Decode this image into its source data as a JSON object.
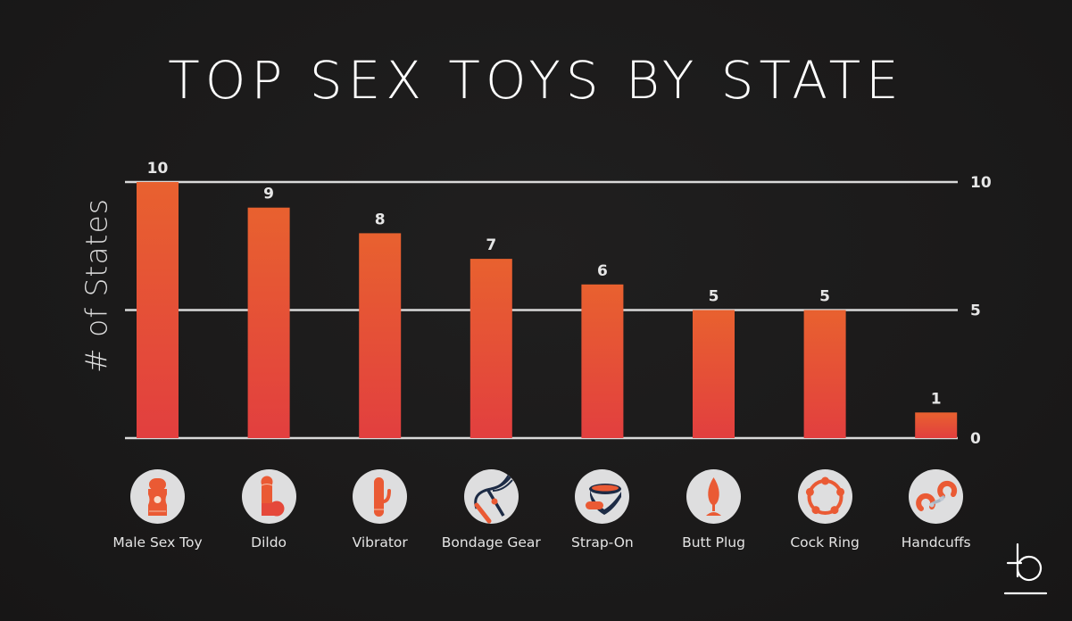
{
  "chart_data": {
    "type": "bar",
    "title": "TOP SEX TOYS BY STATE",
    "xlabel": "",
    "ylabel": "# of States",
    "ylim": [
      0,
      10
    ],
    "yticks": [
      0,
      5,
      10
    ],
    "ytick_labels": [
      "0",
      "5",
      "10"
    ],
    "grid": true,
    "axis_side": "right",
    "categories": [
      "Male Sex Toy",
      "Dildo",
      "Vibrator",
      "Bondage Gear",
      "Strap-On",
      "Butt Plug",
      "Cock Ring",
      "Handcuffs"
    ],
    "values": [
      10,
      9,
      8,
      7,
      6,
      5,
      5,
      1
    ],
    "data_labels": [
      "10",
      "9",
      "8",
      "7",
      "6",
      "5",
      "5",
      "1"
    ],
    "category_icons": [
      "male-sex-toy-icon",
      "dildo-icon",
      "vibrator-icon",
      "bondage-gear-icon",
      "strap-on-icon",
      "butt-plug-icon",
      "cock-ring-icon",
      "handcuffs-icon"
    ]
  },
  "colors": {
    "background": "#1b1a1a",
    "bar_top": "#e8612f",
    "bar_bottom": "#e23f3f",
    "gridline": "#d9d9d9",
    "text": "#ffffff",
    "icon_circle": "#dededf",
    "icon_accent": "#ea5a34",
    "icon_dark": "#1d2b45"
  },
  "logo": {
    "icon": "brand-b-logo-icon"
  }
}
